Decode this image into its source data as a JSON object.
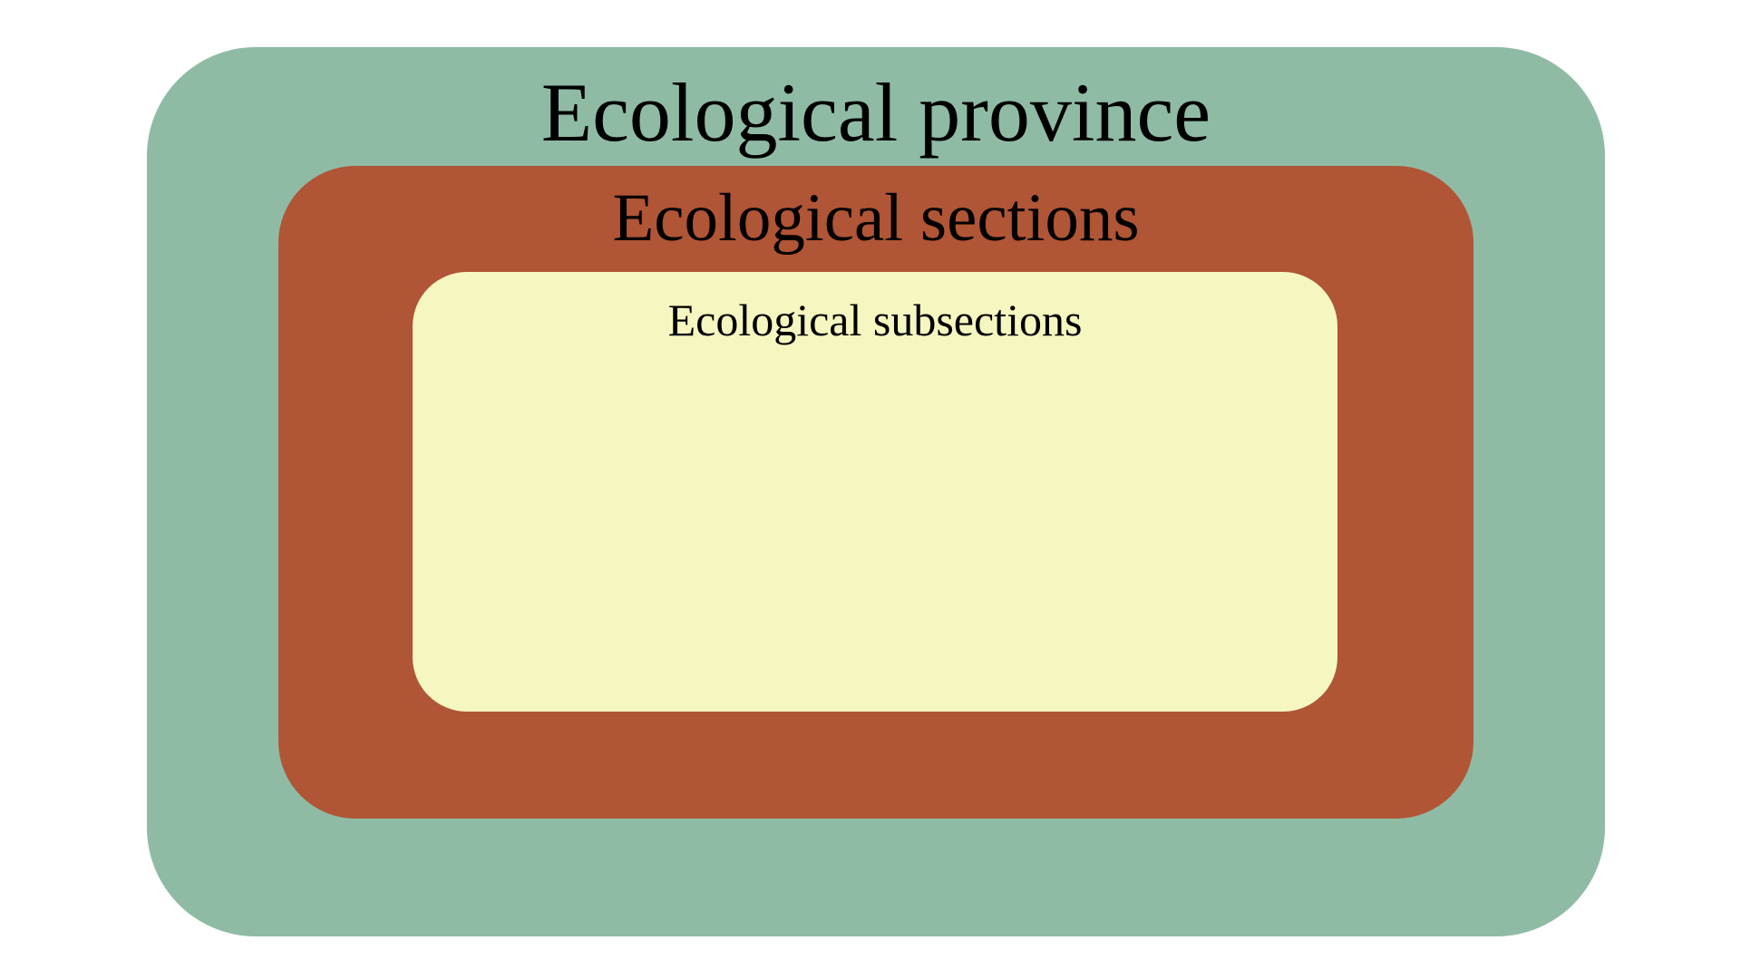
{
  "diagram": {
    "province": {
      "label": "Ecological province",
      "color": "#8fbba5"
    },
    "sections": {
      "label": "Ecological sections",
      "color": "#b05535"
    },
    "subsections": {
      "label": "Ecological subsections",
      "color": "#f6f6c0"
    }
  }
}
